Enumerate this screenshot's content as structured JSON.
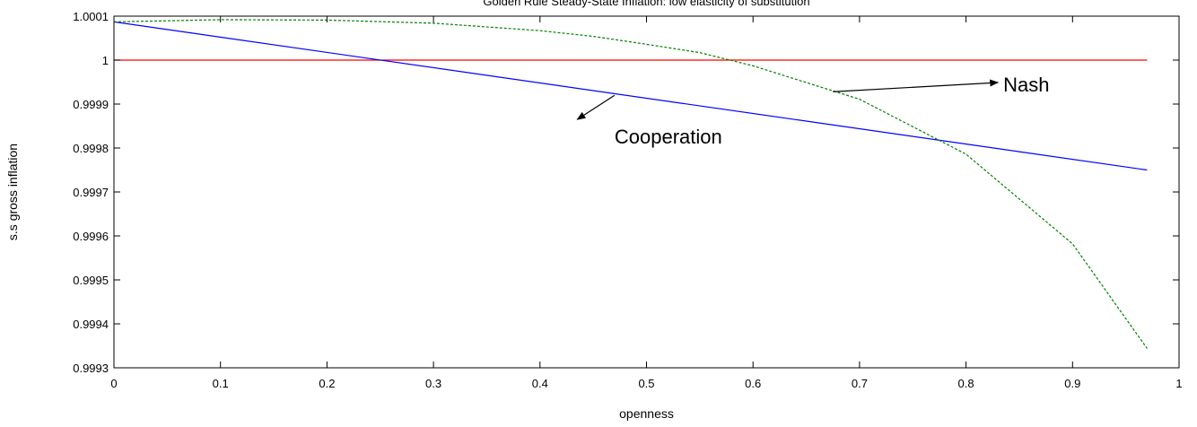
{
  "chart_data": {
    "type": "line",
    "title": "Golden Rule Steady-State Inflation: low elasticity of substitution",
    "xlabel": "openness",
    "ylabel": "s.s gross inflation",
    "xlim": [
      0,
      1
    ],
    "ylim": [
      0.9993,
      1.0001
    ],
    "xticks": [
      0,
      0.1,
      0.2,
      0.3,
      0.4,
      0.5,
      0.6,
      0.7,
      0.8,
      0.9,
      1
    ],
    "xtick_labels": [
      "0",
      "0.1",
      "0.2",
      "0.3",
      "0.4",
      "0.5",
      "0.6",
      "0.7",
      "0.8",
      "0.9",
      "1"
    ],
    "yticks": [
      0.9993,
      0.9994,
      0.9995,
      0.9996,
      0.9997,
      0.9998,
      0.9999,
      1,
      1.0001
    ],
    "ytick_labels": [
      "0.9993",
      "0.9994",
      "0.9995",
      "0.9996",
      "0.9997",
      "0.9998",
      "0.9999",
      "1",
      "1.0001"
    ],
    "grid": false,
    "series": [
      {
        "color": "#ff0000",
        "dash": "solid",
        "x": [
          0,
          0.97
        ],
        "y": [
          1.0,
          1.0
        ]
      },
      {
        "color": "#0000ff",
        "dash": "solid",
        "x": [
          0,
          0.97
        ],
        "y": [
          1.000087,
          0.99975
        ]
      },
      {
        "color": "#008000",
        "dash": "dashed",
        "x": [
          0,
          0.1,
          0.2,
          0.3,
          0.4,
          0.45,
          0.5,
          0.55,
          0.6,
          0.7,
          0.8,
          0.9,
          0.97
        ],
        "y": [
          1.000087,
          1.000092,
          1.000091,
          1.000084,
          1.000067,
          1.000054,
          1.000036,
          1.000017,
          0.999987,
          0.999911,
          0.999786,
          0.999582,
          0.999344
        ]
      }
    ],
    "annotations": [
      {
        "text": "Nash",
        "tx": 0.835,
        "ty": 0.999929,
        "ax_from": 0.675,
        "ay_from": 0.999928,
        "ax_to": 0.83,
        "ay_to": 0.999949
      },
      {
        "text": "Cooperation",
        "tx": 0.47,
        "ty": 0.99981,
        "ax_from": 0.47,
        "ay_from": 0.99992,
        "ax_to": 0.435,
        "ay_to": 0.999865
      }
    ]
  }
}
